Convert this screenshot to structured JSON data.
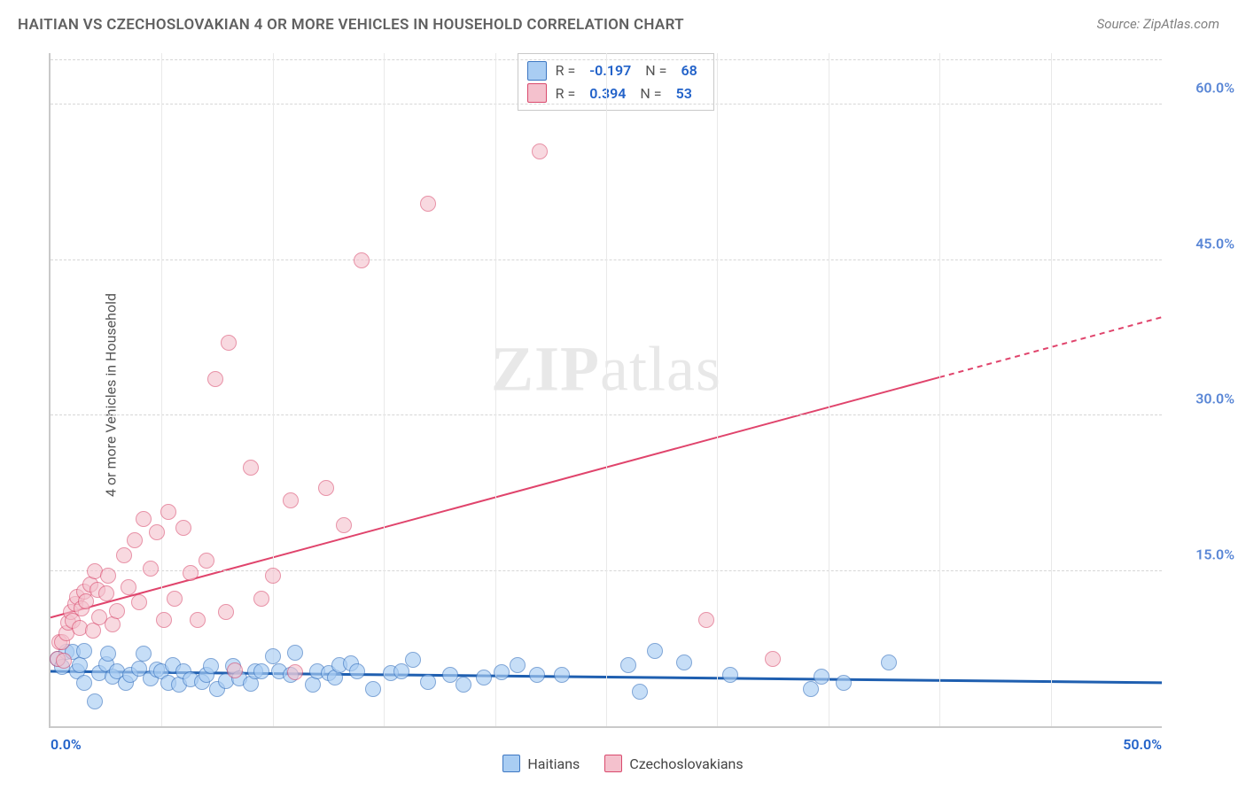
{
  "title": "HAITIAN VS CZECHOSLOVAKIAN 4 OR MORE VEHICLES IN HOUSEHOLD CORRELATION CHART",
  "source": "Source: ZipAtlas.com",
  "y_axis_label": "4 or more Vehicles in Household",
  "watermark_a": "ZIP",
  "watermark_b": "atlas",
  "chart": {
    "type": "scatter",
    "xlim": [
      0,
      50
    ],
    "ylim": [
      0,
      65
    ],
    "y_ticks": [
      15,
      30,
      45,
      60
    ],
    "y_tick_labels": [
      "15.0%",
      "30.0%",
      "45.0%",
      "60.0%"
    ],
    "y_tick_color": "#5a87d6",
    "x_ticks": [
      0,
      50
    ],
    "x_tick_labels": [
      "0.0%",
      "50.0%"
    ],
    "background_color": "#ffffff",
    "grid_color": "#d6d6d6",
    "axis_color": "#c9c9c9",
    "vgrid_step": 5,
    "point_radius": 9,
    "series": [
      {
        "name": "Haitians",
        "fill": "#a9cdf3",
        "stroke": "#3d77c2",
        "fill_opacity": 0.65,
        "R": "-0.197",
        "N": "68",
        "trend": {
          "y_at_x0": 5.3,
          "y_at_x50": 4.2,
          "color": "#1f5fb0",
          "width": 3,
          "dash_from_x": 50
        },
        "points": [
          [
            0.3,
            6.5
          ],
          [
            0.5,
            5.7
          ],
          [
            0.7,
            7.2
          ],
          [
            1.0,
            7.2
          ],
          [
            1.2,
            5.3
          ],
          [
            1.3,
            5.9
          ],
          [
            1.5,
            7.3
          ],
          [
            1.5,
            4.2
          ],
          [
            2.0,
            2.4
          ],
          [
            2.2,
            5.1
          ],
          [
            2.5,
            6.0
          ],
          [
            2.6,
            7.0
          ],
          [
            2.8,
            4.8
          ],
          [
            3.0,
            5.3
          ],
          [
            3.4,
            4.2
          ],
          [
            3.6,
            5.0
          ],
          [
            4.0,
            5.6
          ],
          [
            4.2,
            7.0
          ],
          [
            4.5,
            4.6
          ],
          [
            4.8,
            5.5
          ],
          [
            5.0,
            5.3
          ],
          [
            5.3,
            4.2
          ],
          [
            5.5,
            5.9
          ],
          [
            5.8,
            4.0
          ],
          [
            6.0,
            5.3
          ],
          [
            6.3,
            4.5
          ],
          [
            6.8,
            4.3
          ],
          [
            7.0,
            5.0
          ],
          [
            7.2,
            5.8
          ],
          [
            7.5,
            3.6
          ],
          [
            7.9,
            4.4
          ],
          [
            8.2,
            5.8
          ],
          [
            8.5,
            4.6
          ],
          [
            9.0,
            4.1
          ],
          [
            9.2,
            5.3
          ],
          [
            9.5,
            5.3
          ],
          [
            10.0,
            6.8
          ],
          [
            10.3,
            5.3
          ],
          [
            10.8,
            5.0
          ],
          [
            11.0,
            7.1
          ],
          [
            11.8,
            4.0
          ],
          [
            12.0,
            5.3
          ],
          [
            12.5,
            5.1
          ],
          [
            12.8,
            4.7
          ],
          [
            13.0,
            5.9
          ],
          [
            13.5,
            6.1
          ],
          [
            13.8,
            5.3
          ],
          [
            14.5,
            3.6
          ],
          [
            15.3,
            5.1
          ],
          [
            15.8,
            5.3
          ],
          [
            16.3,
            6.4
          ],
          [
            17.0,
            4.3
          ],
          [
            18.0,
            5.0
          ],
          [
            18.6,
            4.0
          ],
          [
            19.5,
            4.7
          ],
          [
            20.3,
            5.2
          ],
          [
            21.0,
            5.9
          ],
          [
            21.9,
            5.0
          ],
          [
            23.0,
            5.0
          ],
          [
            26.0,
            5.9
          ],
          [
            26.5,
            3.3
          ],
          [
            27.2,
            7.3
          ],
          [
            28.5,
            6.2
          ],
          [
            30.6,
            5.0
          ],
          [
            34.2,
            3.6
          ],
          [
            34.7,
            4.8
          ],
          [
            35.7,
            4.2
          ],
          [
            37.7,
            6.2
          ]
        ]
      },
      {
        "name": "Czechoslovakians",
        "fill": "#f4c1cd",
        "stroke": "#d94a6d",
        "fill_opacity": 0.6,
        "R": "0.394",
        "N": "53",
        "trend": {
          "y_at_x0": 10.5,
          "y_at_x50": 39.5,
          "color": "#e0446c",
          "width": 2,
          "dash_from_x": 40
        },
        "points": [
          [
            0.3,
            6.5
          ],
          [
            0.4,
            8.1
          ],
          [
            0.5,
            8.1
          ],
          [
            0.6,
            6.3
          ],
          [
            0.7,
            9.0
          ],
          [
            0.8,
            10.0
          ],
          [
            0.9,
            11.0
          ],
          [
            1.0,
            10.2
          ],
          [
            1.1,
            11.8
          ],
          [
            1.2,
            12.5
          ],
          [
            1.3,
            9.5
          ],
          [
            1.4,
            11.4
          ],
          [
            1.5,
            13.0
          ],
          [
            1.6,
            12.1
          ],
          [
            1.8,
            13.7
          ],
          [
            1.9,
            9.2
          ],
          [
            2.0,
            15.0
          ],
          [
            2.1,
            13.2
          ],
          [
            2.2,
            10.5
          ],
          [
            2.5,
            12.8
          ],
          [
            2.6,
            14.5
          ],
          [
            2.8,
            9.8
          ],
          [
            3.0,
            11.1
          ],
          [
            3.3,
            16.5
          ],
          [
            3.5,
            13.4
          ],
          [
            3.8,
            18.0
          ],
          [
            4.0,
            12.0
          ],
          [
            4.2,
            20.0
          ],
          [
            4.5,
            15.2
          ],
          [
            4.8,
            18.7
          ],
          [
            5.1,
            10.3
          ],
          [
            5.3,
            20.7
          ],
          [
            5.6,
            12.3
          ],
          [
            6.0,
            19.2
          ],
          [
            6.3,
            14.8
          ],
          [
            6.6,
            10.3
          ],
          [
            7.0,
            16.0
          ],
          [
            7.4,
            33.5
          ],
          [
            7.9,
            11.0
          ],
          [
            8.0,
            37.0
          ],
          [
            8.3,
            5.4
          ],
          [
            9.0,
            25.0
          ],
          [
            9.5,
            12.3
          ],
          [
            10.0,
            14.5
          ],
          [
            10.8,
            21.8
          ],
          [
            11.0,
            5.2
          ],
          [
            12.4,
            23.0
          ],
          [
            13.2,
            19.4
          ],
          [
            14.0,
            45.0
          ],
          [
            17.0,
            50.5
          ],
          [
            22.0,
            55.5
          ],
          [
            29.5,
            10.3
          ],
          [
            32.5,
            6.5
          ]
        ]
      }
    ],
    "legend_labels": {
      "R": "R =",
      "N": "N ="
    },
    "bottom_legend": [
      "Haitians",
      "Czechoslovakians"
    ]
  }
}
